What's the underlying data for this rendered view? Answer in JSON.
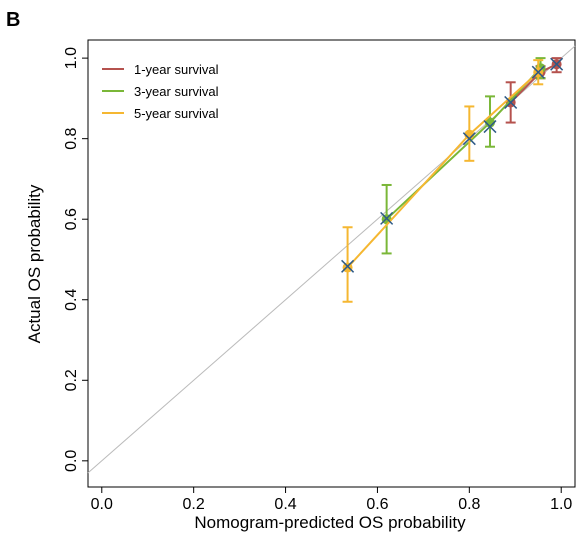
{
  "chart_data": {
    "type": "calibration",
    "panel_label": "B",
    "x_label": "Nomogram-predicted OS probability",
    "y_label": "Actual OS probability",
    "xlim": [
      -0.03,
      1.03
    ],
    "ylim": [
      -0.065,
      1.045
    ],
    "xticks": [
      {
        "value": 0,
        "label": "0.0"
      },
      0.2,
      0.4,
      0.6,
      0.8,
      {
        "value": 1,
        "label": "1.0"
      }
    ],
    "yticks": [
      {
        "value": 0,
        "label": "0.0"
      },
      0.2,
      0.4,
      0.6,
      0.8,
      {
        "value": 1,
        "label": "1.0"
      }
    ],
    "diagonal": true,
    "diagonal_color": "#bbbbbb",
    "legend": "top-left",
    "series": [
      {
        "name": "1-year survival",
        "color": "#b5524e",
        "marker": "circle",
        "x": [
          0.89,
          0.955,
          0.99
        ],
        "values": [
          0.89,
          0.965,
          0.985
        ],
        "lower": [
          0.84,
          0.95,
          0.965
        ],
        "upper": [
          0.94,
          0.98,
          1.0
        ]
      },
      {
        "name": "3-year survival",
        "color": "#7ab738",
        "marker": "circle",
        "x": [
          0.62,
          0.845,
          0.955
        ],
        "values": [
          0.6,
          0.84,
          0.975
        ],
        "lower": [
          0.515,
          0.78,
          0.95
        ],
        "upper": [
          0.685,
          0.905,
          1.0
        ]
      },
      {
        "name": "5-year survival",
        "color": "#f5b731",
        "marker": "circle",
        "x": [
          0.535,
          0.8,
          0.95
        ],
        "values": [
          0.48,
          0.81,
          0.965
        ],
        "lower": [
          0.395,
          0.745,
          0.935
        ],
        "upper": [
          0.58,
          0.88,
          0.995
        ]
      },
      {
        "color": "#2e5a87",
        "marker": "x",
        "x": [
          0.535,
          0.62,
          0.8,
          0.845,
          0.89,
          0.95,
          0.99
        ],
        "values": [
          0.483,
          0.602,
          0.8,
          0.83,
          0.89,
          0.965,
          0.985
        ]
      }
    ]
  }
}
